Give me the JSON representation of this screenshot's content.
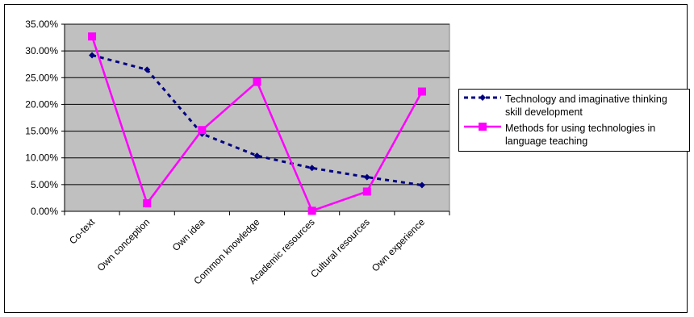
{
  "chart_data": {
    "type": "line",
    "categories": [
      "Co-text",
      "Own conception",
      "Own idea",
      "Common knowledge",
      "Academic resources",
      "Cultural resources",
      "Own experience"
    ],
    "ylim": [
      0,
      0.35
    ],
    "yticks": [
      0,
      0.05,
      0.1,
      0.15,
      0.2,
      0.25,
      0.3,
      0.35
    ],
    "ytick_labels": [
      "0.00%",
      "5.00%",
      "10.00%",
      "15.00%",
      "20.00%",
      "25.00%",
      "30.00%",
      "35.00%"
    ],
    "grid": true,
    "legend_position": "right",
    "plot_background": "#c0c0c0",
    "series": [
      {
        "name": "Technology and imaginative thinking skill development",
        "values": [
          0.292,
          0.265,
          0.145,
          0.104,
          0.081,
          0.064,
          0.049
        ],
        "color": "#000080",
        "line_style": "dashed",
        "marker": "diamond"
      },
      {
        "name": "Methods for using technologies in language teaching",
        "values": [
          0.327,
          0.015,
          0.152,
          0.242,
          0.001,
          0.037,
          0.224
        ],
        "color": "#ff00ff",
        "line_style": "solid",
        "marker": "square"
      }
    ]
  }
}
